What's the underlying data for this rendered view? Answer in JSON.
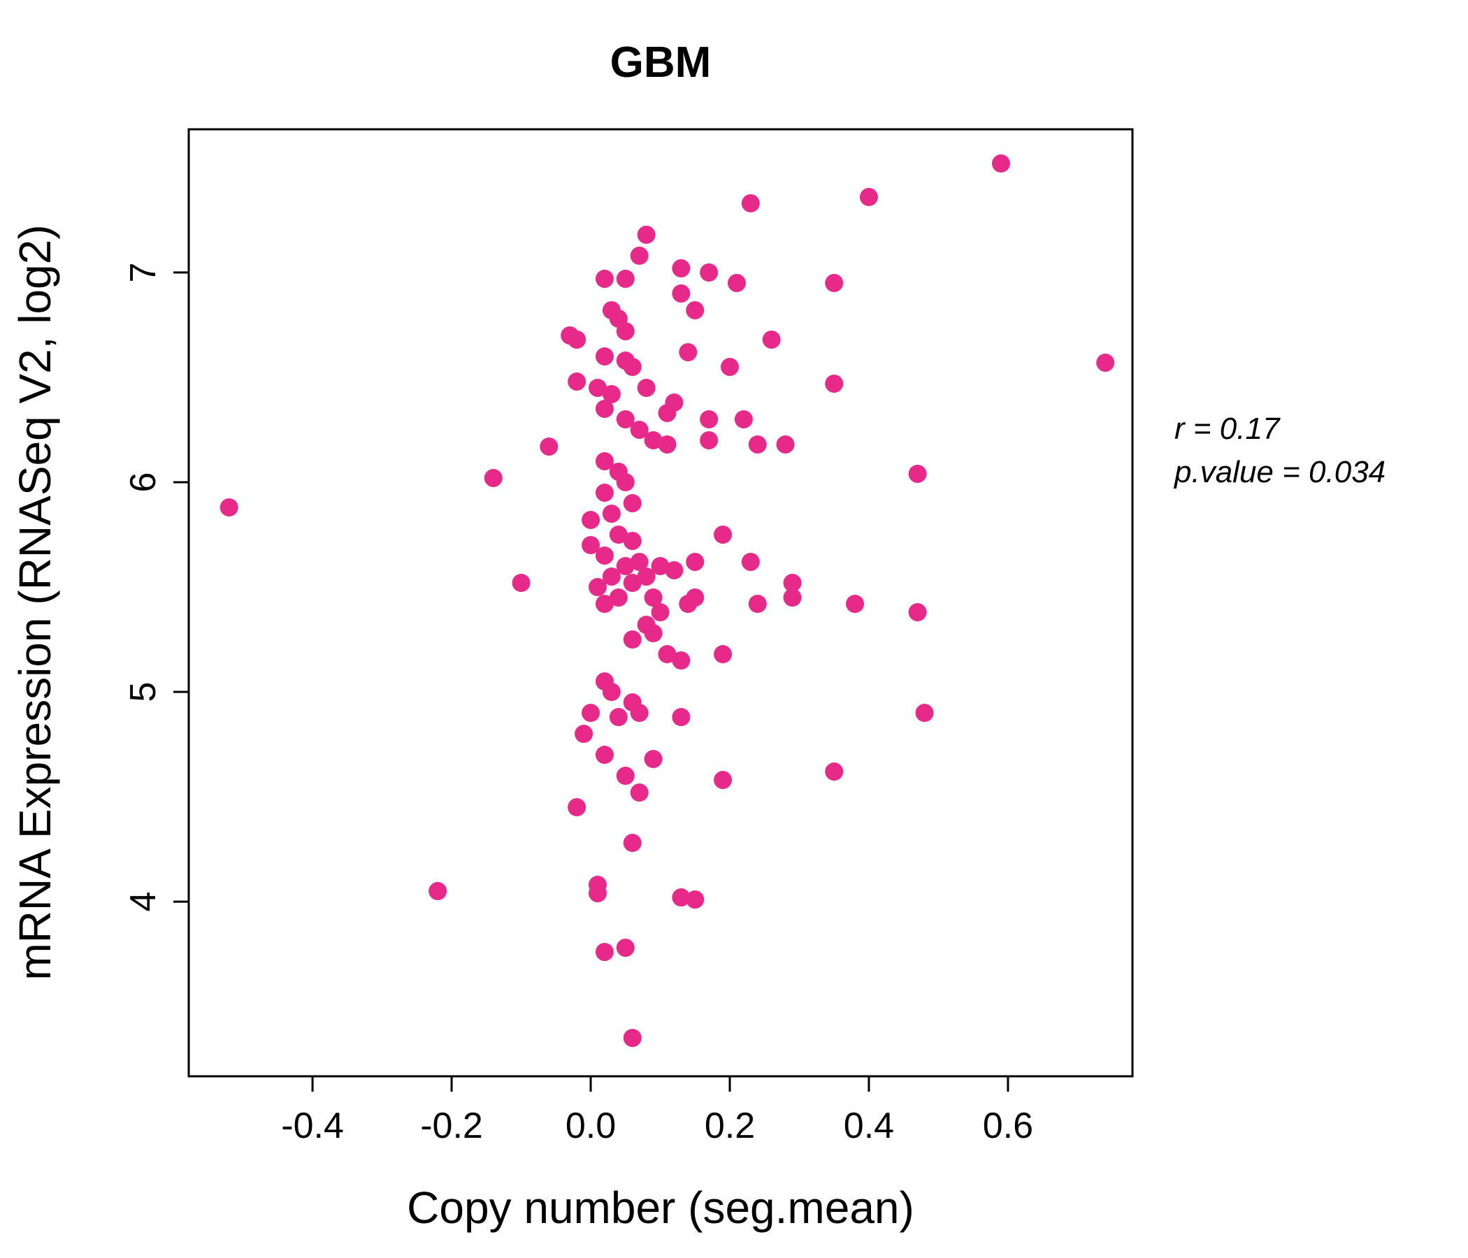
{
  "chart_data": {
    "type": "scatter",
    "title": "GBM",
    "xlabel": "Copy number (seg.mean)",
    "ylabel": "mRNA Expression (RNASeq V2, log2)",
    "xlim": [
      -0.578,
      0.779
    ],
    "ylim": [
      3.167,
      7.683
    ],
    "x_ticks": [
      -0.4,
      -0.2,
      0.0,
      0.2,
      0.4,
      0.6
    ],
    "x_tick_labels": [
      "-0.4",
      "-0.2",
      "0.0",
      "0.2",
      "0.4",
      "0.6"
    ],
    "y_ticks": [
      4,
      5,
      6,
      7
    ],
    "y_tick_labels": [
      "4",
      "5",
      "6",
      "7"
    ],
    "grid": false,
    "legend": "none",
    "annotations": [
      "r = 0.17",
      "p.value = 0.034"
    ],
    "point_color": "#E7298A",
    "title_color": "#E7298A",
    "axis_color": "#000000",
    "points": [
      [
        -0.52,
        5.88
      ],
      [
        -0.22,
        4.05
      ],
      [
        -0.14,
        6.02
      ],
      [
        -0.1,
        5.52
      ],
      [
        -0.06,
        6.17
      ],
      [
        0.59,
        7.52
      ],
      [
        0.4,
        7.36
      ],
      [
        0.23,
        7.33
      ],
      [
        0.74,
        6.57
      ],
      [
        0.35,
        6.95
      ],
      [
        0.35,
        6.47
      ],
      [
        0.47,
        6.04
      ],
      [
        0.47,
        5.38
      ],
      [
        0.48,
        4.9
      ],
      [
        0.38,
        5.42
      ],
      [
        0.35,
        4.62
      ],
      [
        0.26,
        6.68
      ],
      [
        0.28,
        6.18
      ],
      [
        0.24,
        6.18
      ],
      [
        0.29,
        5.52
      ],
      [
        0.29,
        5.45
      ],
      [
        0.23,
        5.62
      ],
      [
        0.24,
        5.42
      ],
      [
        0.19,
        5.75
      ],
      [
        0.19,
        5.18
      ],
      [
        0.19,
        4.58
      ],
      [
        0.21,
        6.95
      ],
      [
        0.2,
        6.55
      ],
      [
        0.22,
        6.3
      ],
      [
        0.08,
        7.18
      ],
      [
        0.07,
        7.08
      ],
      [
        0.13,
        7.02
      ],
      [
        0.17,
        7.0
      ],
      [
        0.05,
        6.97
      ],
      [
        0.02,
        6.97
      ],
      [
        0.13,
        6.9
      ],
      [
        0.15,
        6.82
      ],
      [
        0.03,
        6.82
      ],
      [
        0.04,
        6.78
      ],
      [
        0.05,
        6.72
      ],
      [
        -0.03,
        6.7
      ],
      [
        -0.02,
        6.68
      ],
      [
        0.02,
        6.6
      ],
      [
        0.05,
        6.58
      ],
      [
        0.14,
        6.62
      ],
      [
        0.06,
        6.55
      ],
      [
        -0.02,
        6.48
      ],
      [
        0.01,
        6.45
      ],
      [
        0.08,
        6.45
      ],
      [
        0.03,
        6.42
      ],
      [
        0.12,
        6.38
      ],
      [
        0.02,
        6.35
      ],
      [
        0.11,
        6.33
      ],
      [
        0.05,
        6.3
      ],
      [
        0.17,
        6.3
      ],
      [
        0.07,
        6.25
      ],
      [
        0.09,
        6.2
      ],
      [
        0.17,
        6.2
      ],
      [
        0.11,
        6.18
      ],
      [
        0.02,
        6.1
      ],
      [
        0.04,
        6.05
      ],
      [
        0.05,
        6.0
      ],
      [
        0.02,
        5.95
      ],
      [
        0.06,
        5.9
      ],
      [
        0.03,
        5.85
      ],
      [
        0.0,
        5.82
      ],
      [
        0.04,
        5.75
      ],
      [
        0.06,
        5.72
      ],
      [
        0.0,
        5.7
      ],
      [
        0.02,
        5.65
      ],
      [
        0.05,
        5.6
      ],
      [
        0.07,
        5.62
      ],
      [
        0.1,
        5.6
      ],
      [
        0.12,
        5.58
      ],
      [
        0.15,
        5.62
      ],
      [
        0.03,
        5.55
      ],
      [
        0.08,
        5.55
      ],
      [
        0.06,
        5.52
      ],
      [
        0.01,
        5.5
      ],
      [
        0.04,
        5.45
      ],
      [
        0.09,
        5.45
      ],
      [
        0.15,
        5.45
      ],
      [
        0.02,
        5.42
      ],
      [
        0.14,
        5.42
      ],
      [
        0.1,
        5.38
      ],
      [
        0.08,
        5.32
      ],
      [
        0.09,
        5.28
      ],
      [
        0.06,
        5.25
      ],
      [
        0.11,
        5.18
      ],
      [
        0.13,
        5.15
      ],
      [
        0.02,
        5.05
      ],
      [
        0.03,
        5.0
      ],
      [
        0.06,
        4.95
      ],
      [
        0.0,
        4.9
      ],
      [
        0.04,
        4.88
      ],
      [
        0.07,
        4.9
      ],
      [
        0.13,
        4.88
      ],
      [
        -0.01,
        4.8
      ],
      [
        0.02,
        4.7
      ],
      [
        0.09,
        4.68
      ],
      [
        0.05,
        4.6
      ],
      [
        0.07,
        4.52
      ],
      [
        -0.02,
        4.45
      ],
      [
        0.06,
        4.28
      ],
      [
        0.01,
        4.08
      ],
      [
        0.01,
        4.04
      ],
      [
        0.13,
        4.02
      ],
      [
        0.15,
        4.01
      ],
      [
        0.05,
        3.78
      ],
      [
        0.02,
        3.76
      ],
      [
        0.06,
        3.35
      ]
    ]
  }
}
